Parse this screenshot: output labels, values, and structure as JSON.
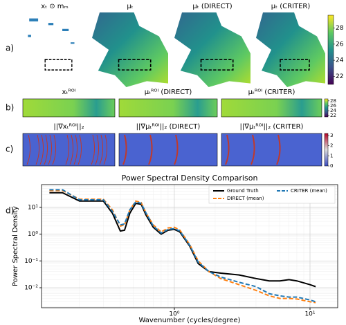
{
  "panel_labels": [
    "a)",
    "b)",
    "c)",
    "d)"
  ],
  "row_a": {
    "titles": [
      "xₜ ⊙ mₘ",
      "μₜ",
      "μₜ (DIRECT)",
      "μₜ (CRITER)"
    ],
    "colorbar": {
      "lim": [
        21,
        29.6
      ],
      "ticks": [
        22,
        24,
        26,
        28
      ]
    }
  },
  "row_b": {
    "titles": [
      "xₜᴿᴼᴵ",
      "μₜᴿᴼᴵ (DIRECT)",
      "μₜᴿᴼᴵ (CRITER)"
    ],
    "colorbar": {
      "lim": [
        21.5,
        28.8
      ],
      "ticks": [
        22,
        24,
        26,
        28
      ]
    }
  },
  "row_c": {
    "titles": [
      "||∇xₜᴿᴼᴵ||₂",
      "||∇μₜᴿᴼᴵ||₂ (DIRECT)",
      "||∇μₜᴿᴼᴵ||₂ (CRITER)"
    ],
    "colorbar": {
      "lim": [
        0,
        3.2
      ],
      "ticks": [
        0,
        1,
        2,
        3
      ]
    }
  },
  "chart_data": {
    "type": "line",
    "title": "Power Spectral Density Comparison",
    "x_label": "Wavenumber (cycles/degree)",
    "y_label": "Power Spectral Density",
    "xscale": "log",
    "yscale": "log",
    "grid": true,
    "legend": "upper right",
    "x": [
      0.12,
      0.15,
      0.2,
      0.25,
      0.3,
      0.35,
      0.4,
      0.43,
      0.47,
      0.52,
      0.57,
      0.62,
      0.7,
      0.8,
      0.9,
      1.0,
      1.1,
      1.3,
      1.5,
      1.8,
      2.2,
      3,
      4,
      5,
      6,
      7,
      8,
      10,
      11
    ],
    "series": [
      {
        "name": "Ground Truth",
        "color": "#000000",
        "dash": false,
        "values": [
          35,
          35,
          17,
          17,
          17,
          6,
          1.3,
          1.4,
          6,
          14,
          13,
          5,
          1.8,
          1.0,
          1.4,
          1.5,
          1.2,
          0.35,
          0.08,
          0.04,
          0.035,
          0.03,
          0.022,
          0.018,
          0.018,
          0.02,
          0.018,
          0.013,
          0.011
        ]
      },
      {
        "name": "DIRECT (mean)",
        "color": "#ff7f0e",
        "dash": true,
        "values": [
          42,
          42,
          20,
          20,
          20,
          8,
          2.0,
          2.2,
          8,
          17,
          15,
          6,
          2.2,
          1.2,
          1.7,
          1.8,
          1.4,
          0.4,
          0.1,
          0.04,
          0.022,
          0.013,
          0.008,
          0.005,
          0.004,
          0.004,
          0.0038,
          0.003,
          0.0028
        ]
      },
      {
        "name": "CRITER (mean)",
        "color": "#1f77b4",
        "dash": true,
        "values": [
          45,
          45,
          19,
          19,
          19,
          7,
          2.2,
          2.4,
          8,
          16,
          14,
          6,
          2.0,
          1.1,
          1.5,
          1.6,
          1.3,
          0.38,
          0.09,
          0.04,
          0.025,
          0.016,
          0.011,
          0.006,
          0.005,
          0.0045,
          0.0045,
          0.0035,
          0.003
        ]
      }
    ],
    "xlim": [
      0.105,
      16
    ],
    "ylim": [
      0.0018,
      70
    ],
    "xticks": [
      {
        "value": 1,
        "label": "10⁰"
      },
      {
        "value": 10,
        "label": "10¹"
      }
    ],
    "yticks": [
      {
        "value": 0.01,
        "label": "10⁻²"
      },
      {
        "value": 0.1,
        "label": "10⁻¹"
      },
      {
        "value": 1,
        "label": "10⁰"
      },
      {
        "value": 10,
        "label": "10¹"
      }
    ]
  }
}
